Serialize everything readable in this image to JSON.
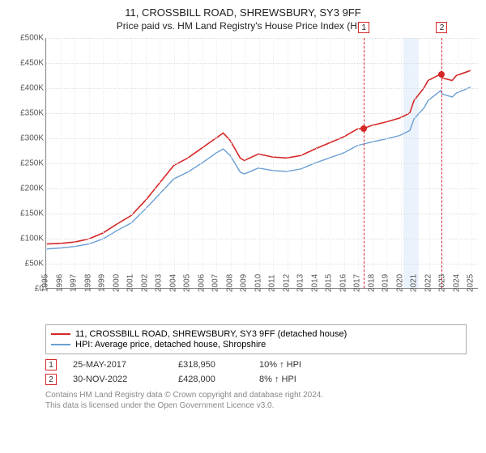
{
  "title": "11, CROSSBILL ROAD, SHREWSBURY, SY3 9FF",
  "subtitle": "Price paid vs. HM Land Registry's House Price Index (HPI)",
  "chart": {
    "type": "line",
    "y": {
      "min": 0,
      "max": 500000,
      "step": 50000,
      "prefix": "£",
      "suffix": "K",
      "divide": 1000
    },
    "x": {
      "min": 1995,
      "max": 2025.5,
      "ticks": [
        1995,
        1996,
        1997,
        1998,
        1999,
        2000,
        2001,
        2002,
        2003,
        2004,
        2005,
        2006,
        2007,
        2008,
        2009,
        2010,
        2011,
        2012,
        2013,
        2014,
        2015,
        2016,
        2017,
        2018,
        2019,
        2020,
        2021,
        2022,
        2023,
        2024,
        2025
      ]
    },
    "grid_color": "#ddd",
    "background_color": "#ffffff",
    "shade": {
      "start": 2020.2,
      "end": 2021.3,
      "color": "#dcebfa"
    },
    "series": [
      {
        "name": "11, CROSSBILL ROAD, SHREWSBURY, SY3 9FF (detached house)",
        "color": "#d62728",
        "width": 1.6,
        "points": [
          [
            1995,
            88000
          ],
          [
            1996,
            89000
          ],
          [
            1997,
            92000
          ],
          [
            1998,
            98000
          ],
          [
            1999,
            110000
          ],
          [
            2000,
            128000
          ],
          [
            2001,
            145000
          ],
          [
            2002,
            175000
          ],
          [
            2003,
            210000
          ],
          [
            2004,
            245000
          ],
          [
            2005,
            260000
          ],
          [
            2006,
            280000
          ],
          [
            2007,
            300000
          ],
          [
            2007.5,
            310000
          ],
          [
            2008,
            295000
          ],
          [
            2008.7,
            260000
          ],
          [
            2009,
            255000
          ],
          [
            2010,
            268000
          ],
          [
            2011,
            262000
          ],
          [
            2012,
            260000
          ],
          [
            2013,
            265000
          ],
          [
            2014,
            278000
          ],
          [
            2015,
            290000
          ],
          [
            2016,
            302000
          ],
          [
            2017,
            318000
          ],
          [
            2017.4,
            318950
          ],
          [
            2018,
            325000
          ],
          [
            2019,
            332000
          ],
          [
            2020,
            340000
          ],
          [
            2020.7,
            350000
          ],
          [
            2021,
            375000
          ],
          [
            2021.7,
            400000
          ],
          [
            2022,
            415000
          ],
          [
            2022.9,
            428000
          ],
          [
            2023,
            420000
          ],
          [
            2023.7,
            415000
          ],
          [
            2024,
            425000
          ],
          [
            2024.7,
            432000
          ],
          [
            2025,
            435000
          ]
        ]
      },
      {
        "name": "HPI: Average price, detached house, Shropshire",
        "color": "#6a9fd4",
        "width": 1.4,
        "points": [
          [
            1995,
            78000
          ],
          [
            1996,
            80000
          ],
          [
            1997,
            83000
          ],
          [
            1998,
            88000
          ],
          [
            1999,
            98000
          ],
          [
            2000,
            115000
          ],
          [
            2001,
            130000
          ],
          [
            2002,
            158000
          ],
          [
            2003,
            188000
          ],
          [
            2004,
            218000
          ],
          [
            2005,
            232000
          ],
          [
            2006,
            250000
          ],
          [
            2007,
            270000
          ],
          [
            2007.5,
            278000
          ],
          [
            2008,
            265000
          ],
          [
            2008.7,
            232000
          ],
          [
            2009,
            228000
          ],
          [
            2010,
            240000
          ],
          [
            2011,
            235000
          ],
          [
            2012,
            233000
          ],
          [
            2013,
            238000
          ],
          [
            2014,
            250000
          ],
          [
            2015,
            260000
          ],
          [
            2016,
            270000
          ],
          [
            2017,
            285000
          ],
          [
            2018,
            292000
          ],
          [
            2019,
            298000
          ],
          [
            2020,
            305000
          ],
          [
            2020.7,
            315000
          ],
          [
            2021,
            338000
          ],
          [
            2021.7,
            360000
          ],
          [
            2022,
            375000
          ],
          [
            2022.9,
            395000
          ],
          [
            2023,
            388000
          ],
          [
            2023.7,
            382000
          ],
          [
            2024,
            390000
          ],
          [
            2024.7,
            398000
          ],
          [
            2025,
            402000
          ]
        ]
      }
    ],
    "markers": [
      {
        "label": "1",
        "x": 2017.4,
        "y": 318950,
        "color": "#d62728"
      },
      {
        "label": "2",
        "x": 2022.9,
        "y": 428000,
        "color": "#d62728"
      }
    ]
  },
  "legend": {
    "border_color": "#aaa"
  },
  "sales": [
    {
      "label": "1",
      "date": "25-MAY-2017",
      "price": "£318,950",
      "diff": "10% ↑ HPI",
      "color": "#d62728"
    },
    {
      "label": "2",
      "date": "30-NOV-2022",
      "price": "£428,000",
      "diff": "8% ↑ HPI",
      "color": "#d62728"
    }
  ],
  "footnote_l1": "Contains HM Land Registry data © Crown copyright and database right 2024.",
  "footnote_l2": "This data is licensed under the Open Government Licence v3.0."
}
